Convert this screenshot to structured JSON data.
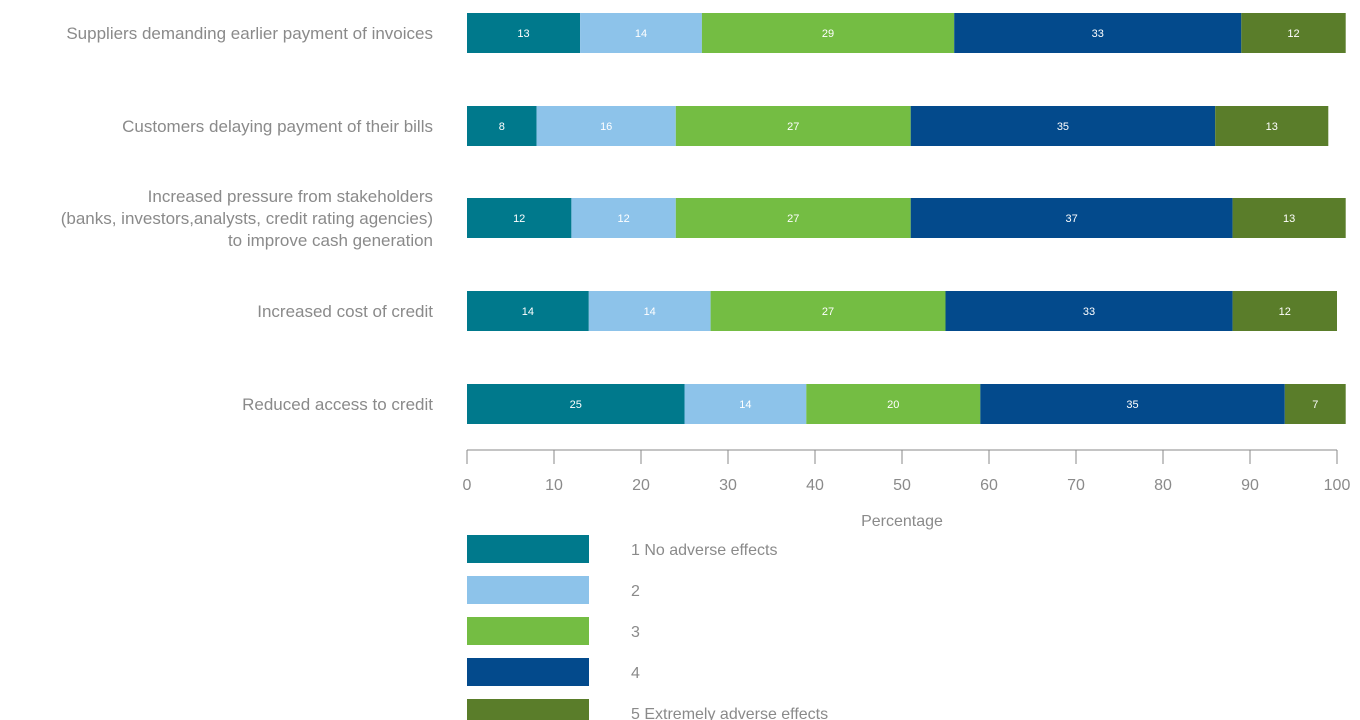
{
  "chart_data": {
    "type": "bar",
    "orientation": "horizontal",
    "stacked": true,
    "categories": [
      [
        "Suppliers demanding earlier payment of invoices"
      ],
      [
        "Customers delaying payment of their bills"
      ],
      [
        "Increased pressure from stakeholders",
        "(banks, investors,analysts, credit rating agencies)",
        "to improve cash generation"
      ],
      [
        "Increased cost of credit"
      ],
      [
        "Reduced access to credit"
      ]
    ],
    "series": [
      {
        "name": "1 No adverse effects",
        "color": "#00798c",
        "values": [
          13,
          8,
          12,
          14,
          25
        ]
      },
      {
        "name": "2",
        "color": "#8dc3ea",
        "values": [
          14,
          16,
          12,
          14,
          14
        ]
      },
      {
        "name": "3",
        "color": "#74bd43",
        "values": [
          29,
          27,
          27,
          27,
          20
        ]
      },
      {
        "name": "4",
        "color": "#034a8c",
        "values": [
          33,
          35,
          37,
          33,
          35
        ]
      },
      {
        "name": "5 Extremely adverse effects",
        "color": "#5a7d2a",
        "values": [
          12,
          13,
          13,
          12,
          7
        ]
      }
    ],
    "xlabel": "Percentage",
    "xlim": [
      0,
      100
    ],
    "xticks": [
      0,
      10,
      20,
      30,
      40,
      50,
      60,
      70,
      80,
      90,
      100
    ],
    "grid": false,
    "legend_position": "bottom"
  }
}
